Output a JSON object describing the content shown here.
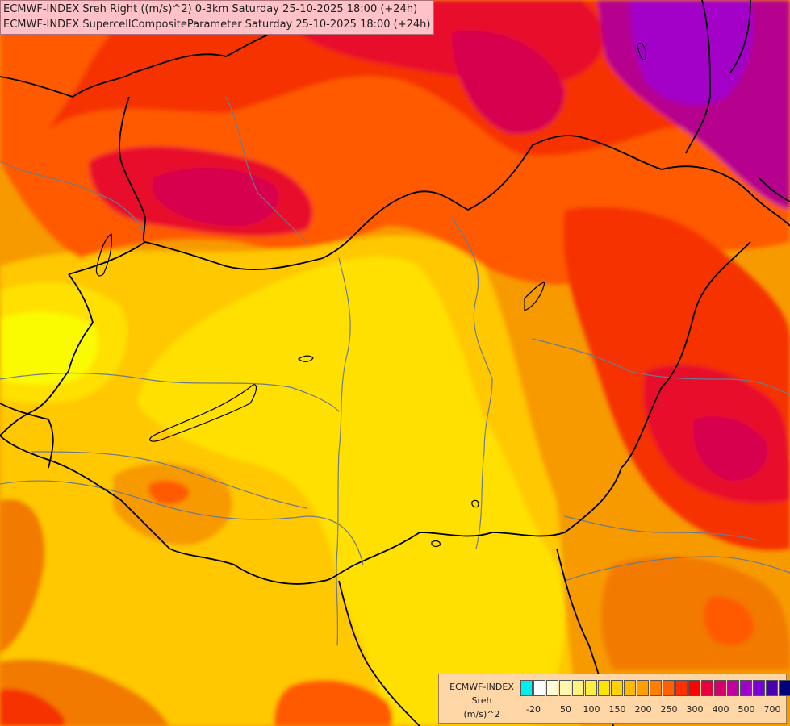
{
  "header": {
    "title_line1": "ECMWF-INDEX Sreh Right ((m/s)^2) 0-3km Saturday 25-10-2025 18:00 (+24h)",
    "title_line2": "ECMWF-INDEX SupercellCompositeParameter Saturday 25-10-2025 18:00 (+24h)"
  },
  "map": {
    "palette": {
      "yellow_bright": "#fafa00",
      "yellow": "#ffe000",
      "yellow_orange": "#ffc800",
      "orange_light": "#ffb000",
      "orange": "#f79a00",
      "orange_dark": "#f27a00",
      "red_orange": "#ff5a00",
      "red": "#f53000",
      "red_deep": "#e8102a",
      "crimson": "#d6004f",
      "magenta": "#b6008e",
      "purple": "#a300c8",
      "border_color": "#000000",
      "river_color": "#6e7a8c"
    }
  },
  "legend": {
    "title": "ECMWF-INDEX",
    "variable": "Sreh",
    "unit": "(m/s)^2",
    "swatches": [
      "#00eeee",
      "#ffffff",
      "#fffcd9",
      "#fff7b0",
      "#fff280",
      "#ffee40",
      "#fae600",
      "#ffd200",
      "#ffb800",
      "#ff9e00",
      "#ff8000",
      "#ff6000",
      "#ff3000",
      "#ff0000",
      "#e6003c",
      "#d4006e",
      "#c000a0",
      "#a000d0",
      "#7800d8",
      "#4a00b0",
      "#00007a"
    ],
    "ticks": [
      "-20",
      "50",
      "100",
      "150",
      "200",
      "250",
      "300",
      "400",
      "500",
      "700"
    ]
  }
}
